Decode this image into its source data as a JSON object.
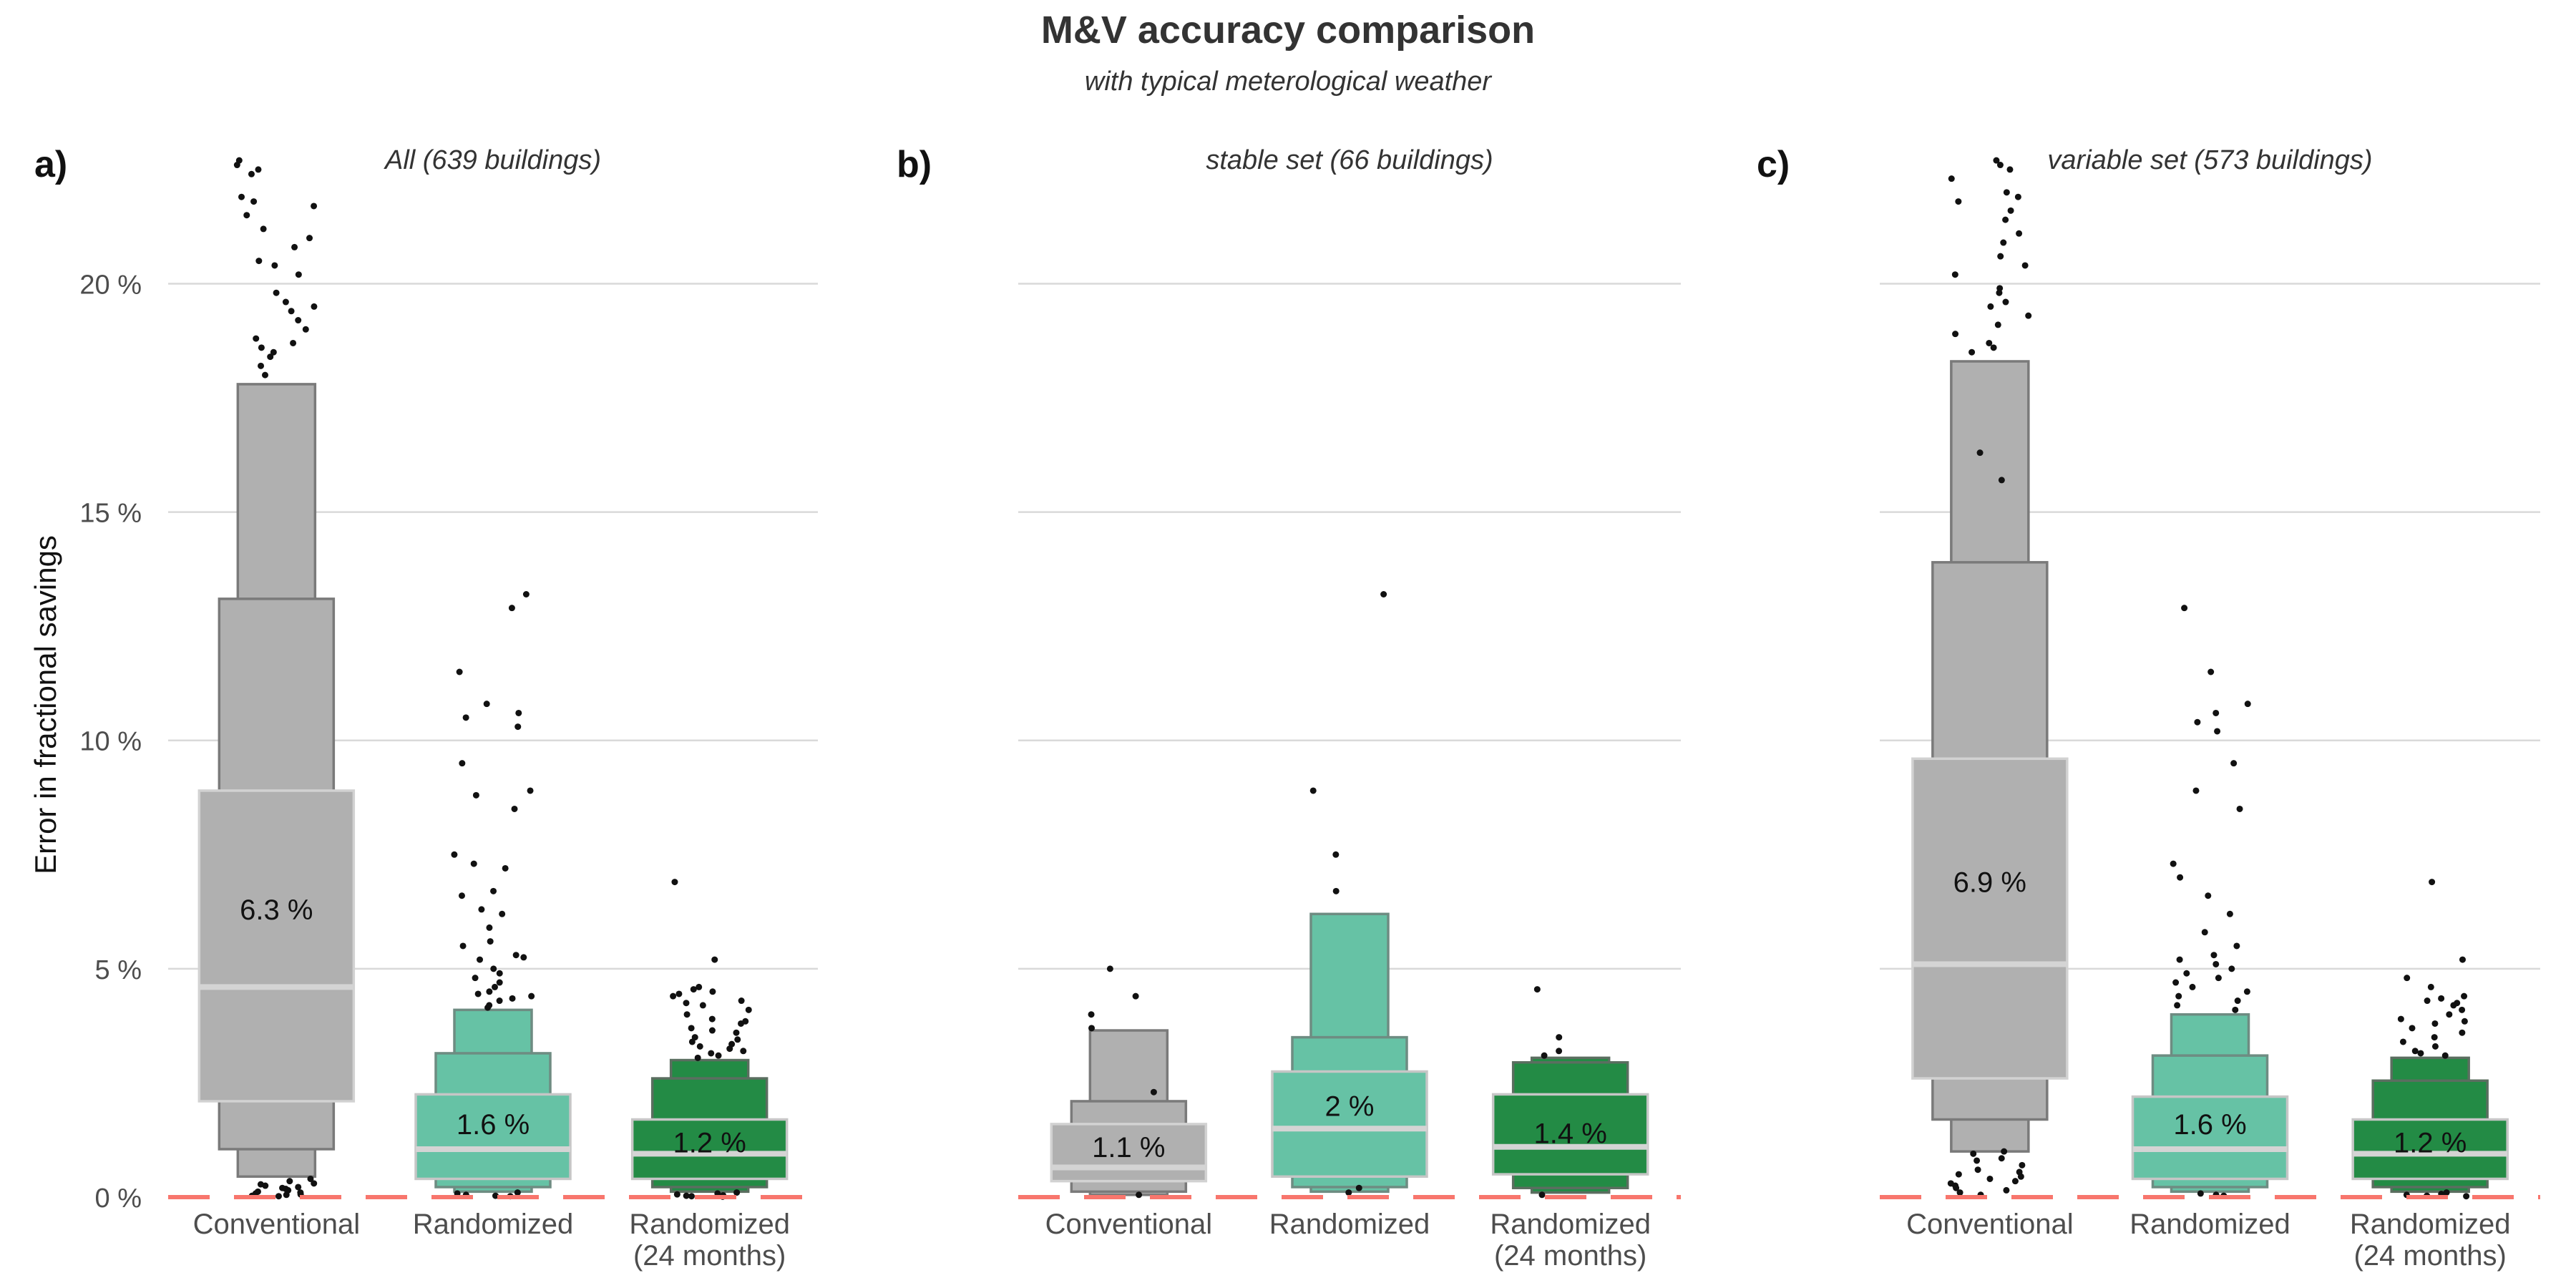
{
  "chart_data": {
    "type": "boxen",
    "title": "M&V accuracy comparison",
    "subtitle": "with typical meterological weather",
    "ylabel": "Error in fractional savings",
    "ylim": [
      0,
      23
    ],
    "yticks": [
      0,
      5,
      10,
      15,
      20
    ],
    "ytick_labels": [
      "0 %",
      "5 %",
      "10 %",
      "15 %",
      "20 %"
    ],
    "categories": [
      "Conventional",
      "Randomized",
      "Randomized\n(24 months)"
    ],
    "colors": {
      "Conventional": "#b0b0b0",
      "Randomized": "#66c2a5",
      "Randomized\n(24 months)": "#238b45",
      "baseline": "#f8766d"
    },
    "panels": [
      {
        "tag": "a)",
        "title": "All (639 buildings)",
        "boxes": [
          {
            "category": "Conventional",
            "median": 4.6,
            "mean_label": "6.3 %",
            "label_y": 6.3,
            "levels": [
              [
                2.1,
                8.9
              ],
              [
                1.05,
                13.1
              ],
              [
                0.45,
                17.8
              ]
            ]
          },
          {
            "category": "Randomized",
            "median": 1.05,
            "mean_label": "1.6 %",
            "label_y": 1.6,
            "levels": [
              [
                0.4,
                2.25
              ],
              [
                0.22,
                3.15
              ],
              [
                0.12,
                4.1
              ]
            ]
          },
          {
            "category": "Randomized\n(24 months)",
            "median": 0.95,
            "mean_label": "1.2 %",
            "label_y": 1.2,
            "levels": [
              [
                0.4,
                1.7
              ],
              [
                0.22,
                2.6
              ],
              [
                0.12,
                3.0
              ]
            ]
          }
        ],
        "outliers": [
          [
            0,
            [
              22.6,
              22.4,
              22.7,
              22.5,
              21.8,
              21.9,
              21.7,
              21.5,
              21.2,
              21.0,
              20.8,
              20.2,
              20.4,
              20.5,
              19.8,
              19.6,
              19.5,
              19.4,
              19.2,
              19.0,
              18.8,
              18.7,
              18.6,
              18.5,
              18.4,
              18.2,
              18.0,
              0.4,
              0.35,
              0.3,
              0.28,
              0.25,
              0.22,
              0.2,
              0.18,
              0.15,
              0.12,
              0.1,
              0.08,
              0.06,
              0.05,
              0.03,
              0.02
            ]
          ],
          [
            1,
            [
              13.2,
              12.9,
              11.5,
              10.8,
              10.6,
              10.5,
              10.3,
              9.5,
              8.9,
              8.8,
              8.5,
              7.5,
              7.3,
              7.2,
              6.7,
              6.6,
              6.3,
              6.2,
              5.9,
              5.6,
              5.5,
              5.3,
              5.25,
              5.2,
              5.0,
              4.9,
              4.8,
              4.7,
              4.6,
              4.5,
              4.45,
              4.4,
              4.35,
              4.3,
              4.2,
              4.15,
              0.1,
              0.08,
              0.05,
              0.03,
              0.02
            ]
          ],
          [
            2,
            [
              6.9,
              5.2,
              4.6,
              4.55,
              4.5,
              4.45,
              4.4,
              4.3,
              4.25,
              4.2,
              4.1,
              4.0,
              3.9,
              3.85,
              3.8,
              3.7,
              3.65,
              3.6,
              3.5,
              3.45,
              3.4,
              3.35,
              3.3,
              3.25,
              3.2,
              3.15,
              3.1,
              3.05,
              0.1,
              0.08,
              0.06,
              0.04,
              0.03,
              0.02,
              0.01
            ]
          ]
        ]
      },
      {
        "tag": "b)",
        "title": "stable set (66 buildings)",
        "boxes": [
          {
            "category": "Conventional",
            "median": 0.65,
            "mean_label": "1.1 %",
            "label_y": 1.1,
            "levels": [
              [
                0.35,
                1.6
              ],
              [
                0.12,
                2.1
              ],
              [
                0.05,
                3.65
              ]
            ]
          },
          {
            "category": "Randomized",
            "median": 1.5,
            "mean_label": "2 %",
            "label_y": 2.0,
            "levels": [
              [
                0.45,
                2.75
              ],
              [
                0.22,
                3.5
              ],
              [
                0.12,
                6.2
              ]
            ]
          },
          {
            "category": "Randomized\n(24 months)",
            "median": 1.1,
            "mean_label": "1.4 %",
            "label_y": 1.4,
            "levels": [
              [
                0.5,
                2.25
              ],
              [
                0.2,
                2.95
              ],
              [
                0.1,
                3.05
              ]
            ]
          }
        ],
        "outliers": [
          [
            0,
            [
              5.0,
              4.4,
              4.0,
              3.7,
              2.3,
              0.05
            ]
          ],
          [
            1,
            [
              13.2,
              8.9,
              7.5,
              6.7,
              0.2,
              0.1
            ]
          ],
          [
            2,
            [
              4.55,
              3.5,
              3.2,
              3.1,
              0.05
            ]
          ]
        ]
      },
      {
        "tag": "c)",
        "title": "variable set (573 buildings)",
        "boxes": [
          {
            "category": "Conventional",
            "median": 5.1,
            "mean_label": "6.9 %",
            "label_y": 6.9,
            "levels": [
              [
                2.6,
                9.6
              ],
              [
                1.7,
                13.9
              ],
              [
                1.0,
                18.3
              ]
            ]
          },
          {
            "category": "Randomized",
            "median": 1.05,
            "mean_label": "1.6 %",
            "label_y": 1.6,
            "levels": [
              [
                0.4,
                2.2
              ],
              [
                0.22,
                3.1
              ],
              [
                0.12,
                4.0
              ]
            ]
          },
          {
            "category": "Randomized\n(24 months)",
            "median": 0.95,
            "mean_label": "1.2 %",
            "label_y": 1.2,
            "levels": [
              [
                0.4,
                1.7
              ],
              [
                0.22,
                2.55
              ],
              [
                0.12,
                3.05
              ]
            ]
          }
        ],
        "outliers": [
          [
            0,
            [
              22.7,
              22.6,
              22.5,
              22.3,
              22.0,
              21.9,
              21.8,
              21.6,
              21.4,
              21.1,
              20.9,
              20.6,
              20.4,
              20.2,
              19.9,
              19.8,
              19.6,
              19.5,
              19.3,
              19.1,
              18.9,
              18.7,
              18.6,
              18.5,
              16.3,
              15.7,
              1.0,
              0.95,
              0.85,
              0.8,
              0.7,
              0.6,
              0.55,
              0.5,
              0.45,
              0.4,
              0.35,
              0.3,
              0.25,
              0.2,
              0.15,
              0.1,
              0.05
            ]
          ],
          [
            1,
            [
              12.9,
              11.5,
              10.8,
              10.6,
              10.4,
              10.2,
              9.5,
              8.9,
              8.5,
              7.3,
              7.0,
              6.6,
              6.2,
              5.8,
              5.5,
              5.3,
              5.2,
              5.1,
              5.0,
              4.9,
              4.8,
              4.7,
              4.6,
              4.5,
              4.4,
              4.3,
              4.2,
              4.1,
              0.08,
              0.05,
              0.03
            ]
          ],
          [
            2,
            [
              6.9,
              5.2,
              4.8,
              4.6,
              4.4,
              4.35,
              4.3,
              4.25,
              4.2,
              4.1,
              4.0,
              3.9,
              3.85,
              3.8,
              3.7,
              3.6,
              3.5,
              3.4,
              3.3,
              3.2,
              3.15,
              3.1,
              0.1,
              0.07,
              0.05,
              0.03,
              0.02
            ]
          ]
        ]
      }
    ]
  }
}
